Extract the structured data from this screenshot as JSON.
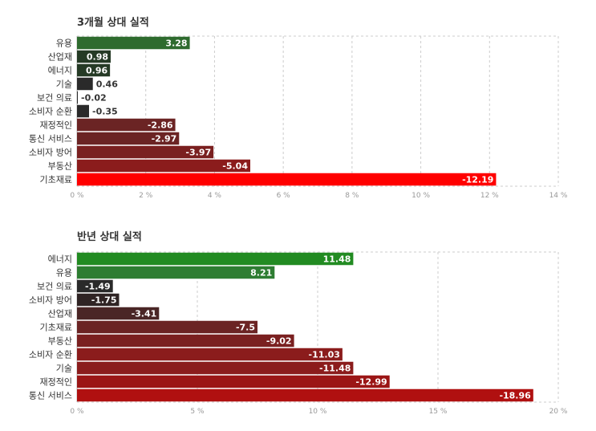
{
  "chart_data": [
    {
      "type": "bar",
      "orientation": "horizontal",
      "title": "3개월 상대 실적",
      "categories": [
        "유용",
        "산업재",
        "에너지",
        "기술",
        "보건 의료",
        "소비자 순환",
        "재정적인",
        "통신 서비스",
        "소비자 방어",
        "부동산",
        "기초재료"
      ],
      "values": [
        3.28,
        0.98,
        0.96,
        0.46,
        -0.02,
        -0.35,
        -2.86,
        -2.97,
        -3.97,
        -5.04,
        -12.19
      ],
      "value_labels": [
        "3.28",
        "0.98",
        "0.96",
        "0.46",
        "-0.02",
        "-0.35",
        "-2.86",
        "-2.97",
        "-3.97",
        "-5.04",
        "-12.19"
      ],
      "colors": [
        "#2e6b2e",
        "#253a25",
        "#253a25",
        "#2a2a2a",
        "#2a2a2a",
        "#2a2a2a",
        "#6b2424",
        "#6b2424",
        "#7a2020",
        "#8b1c1c",
        "#ff0000"
      ],
      "xlim": [
        0,
        14
      ],
      "xticks": [
        "0 %",
        "2 %",
        "4 %",
        "6 %",
        "8 %",
        "10 %",
        "12 %",
        "14 %"
      ],
      "xtick_values": [
        0,
        2,
        4,
        6,
        8,
        10,
        12,
        14
      ],
      "grid": true,
      "note": "bar length = absolute value"
    },
    {
      "type": "bar",
      "orientation": "horizontal",
      "title": "반년 상대 실적",
      "categories": [
        "에너지",
        "유용",
        "보건 의료",
        "소비자 방어",
        "산업재",
        "기초재료",
        "부동산",
        "소비자 순환",
        "기술",
        "재정적인",
        "통신 서비스"
      ],
      "values": [
        11.48,
        8.21,
        -1.49,
        -1.75,
        -3.41,
        -7.5,
        -9.02,
        -11.03,
        -11.48,
        -12.99,
        -18.96
      ],
      "value_labels": [
        "11.48",
        "8.21",
        "-1.49",
        "-1.75",
        "-3.41",
        "-7.5",
        "-9.02",
        "-11.03",
        "-11.48",
        "-12.99",
        "-18.96"
      ],
      "colors": [
        "#228b22",
        "#2e7d32",
        "#2a2a2a",
        "#2f2424",
        "#4a2626",
        "#6b2424",
        "#7a2020",
        "#8b1c1c",
        "#8b1c1c",
        "#9b1616",
        "#b01010"
      ],
      "xlim": [
        0,
        20
      ],
      "xticks": [
        "0 %",
        "5 %",
        "10 %",
        "15 %",
        "20 %"
      ],
      "xtick_values": [
        0,
        5,
        10,
        15,
        20
      ],
      "grid": true
    }
  ]
}
